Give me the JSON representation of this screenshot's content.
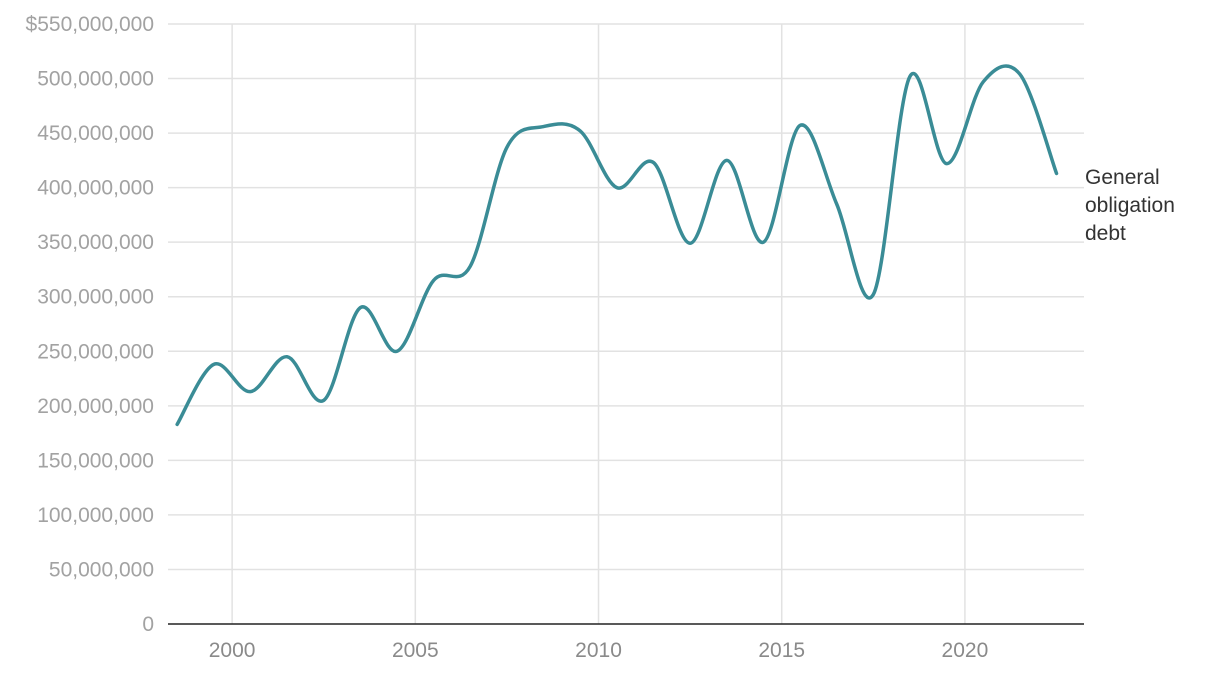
{
  "chart_data": {
    "type": "line",
    "title": "",
    "xlabel": "",
    "ylabel": "",
    "xlim": [
      1998.25,
      2023.25
    ],
    "ylim": [
      0,
      550000000
    ],
    "x_ticks": [
      2000,
      2005,
      2010,
      2015,
      2020
    ],
    "x_tick_labels": [
      "2000",
      "2005",
      "2010",
      "2015",
      "2020"
    ],
    "y_ticks": [
      0,
      50000000,
      100000000,
      150000000,
      200000000,
      250000000,
      300000000,
      350000000,
      400000000,
      450000000,
      500000000,
      550000000
    ],
    "y_tick_labels": [
      "0",
      "50,000,000",
      "100,000,000",
      "150,000,000",
      "200,000,000",
      "250,000,000",
      "300,000,000",
      "350,000,000",
      "400,000,000",
      "450,000,000",
      "500,000,000",
      "$550,000,000"
    ],
    "grid": true,
    "series": [
      {
        "name": "General obligation debt",
        "label_lines": [
          "General",
          "obligation",
          "debt"
        ],
        "color": "#3a8c96",
        "x": [
          1998.5,
          1999.5,
          2000.5,
          2001.5,
          2002.5,
          2003.5,
          2004.5,
          2005.5,
          2006.5,
          2007.5,
          2008.5,
          2009.5,
          2010.5,
          2011.5,
          2012.5,
          2013.5,
          2014.5,
          2015.5,
          2016.5,
          2017.5,
          2018.5,
          2019.5,
          2020.5,
          2021.5,
          2022.5
        ],
        "values": [
          183000000,
          238000000,
          213000000,
          245000000,
          205000000,
          290000000,
          250000000,
          315000000,
          328000000,
          437000000,
          456000000,
          452000000,
          400000000,
          423000000,
          349000000,
          425000000,
          350000000,
          457000000,
          385000000,
          302000000,
          502000000,
          422000000,
          497000000,
          504000000,
          413000000
        ]
      }
    ]
  }
}
